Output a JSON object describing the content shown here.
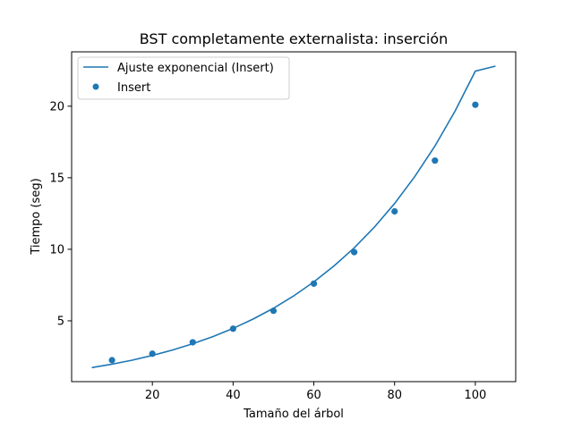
{
  "chart_data": {
    "type": "scatter",
    "title": "BST completamente externalista: inserción",
    "xlabel": "Tamaño del árbol",
    "ylabel": "Tiempo (seg)",
    "xlim": [
      0,
      110
    ],
    "ylim": [
      0.75,
      23.8
    ],
    "xticks": [
      20,
      40,
      60,
      80,
      100
    ],
    "yticks": [
      5,
      10,
      15,
      20
    ],
    "grid": false,
    "legend_position": "top-left",
    "colors": {
      "series": "#1f77b4"
    },
    "series": [
      {
        "name": "Ajuste exponencial (Insert)",
        "kind": "line",
        "function": "exponential",
        "x_range": [
          5,
          105
        ],
        "x": [
          5,
          10,
          15,
          20,
          25,
          30,
          35,
          40,
          45,
          50,
          55,
          60,
          65,
          70,
          75,
          80,
          85,
          90,
          95,
          100,
          105
        ],
        "values": [
          1.73,
          1.97,
          2.25,
          2.58,
          2.96,
          3.4,
          3.9,
          4.47,
          5.13,
          5.88,
          6.74,
          7.72,
          8.84,
          10.1,
          11.55,
          13.2,
          15.08,
          17.22,
          19.67,
          22.45,
          22.8
        ]
      },
      {
        "name": "Insert",
        "kind": "scatter",
        "x": [
          10,
          20,
          30,
          40,
          50,
          60,
          70,
          80,
          90,
          100
        ],
        "values": [
          2.25,
          2.7,
          3.5,
          4.45,
          5.7,
          7.6,
          9.8,
          12.65,
          16.2,
          20.1
        ]
      }
    ]
  }
}
